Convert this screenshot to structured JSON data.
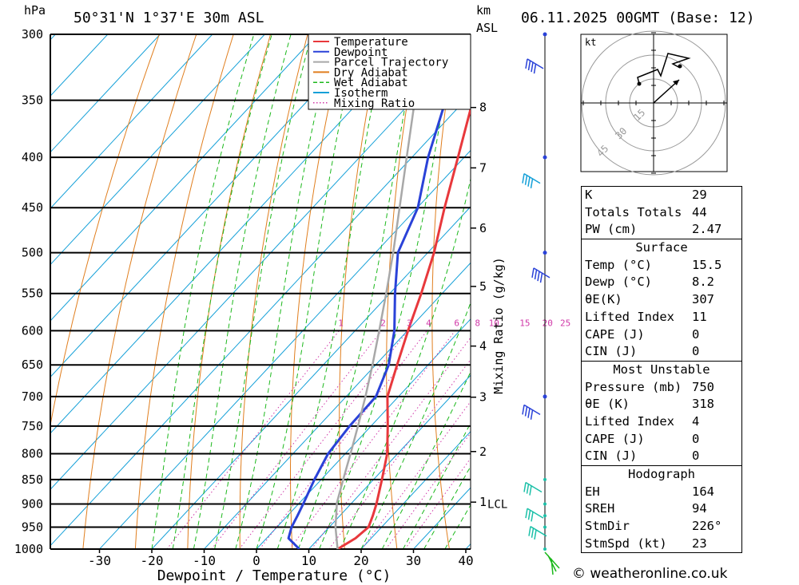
{
  "header": {
    "hpa_label": "hPa",
    "location": "50°31'N 1°37'E 30m ASL",
    "km_label": "km",
    "asl_label": "ASL",
    "datetime": "06.11.2025 00GMT (Base: 12)"
  },
  "legend": [
    {
      "label": "Temperature",
      "color": "#e8383c",
      "style": "solid"
    },
    {
      "label": "Dewpoint",
      "color": "#2a42d8",
      "style": "solid"
    },
    {
      "label": "Parcel Trajectory",
      "color": "#a8a8a8",
      "style": "solid"
    },
    {
      "label": "Dry Adiabat",
      "color": "#e07e1e",
      "style": "solid"
    },
    {
      "label": "Wet Adiabat",
      "color": "#1cb81c",
      "style": "dashed"
    },
    {
      "label": "Isotherm",
      "color": "#14a0d8",
      "style": "solid"
    },
    {
      "label": "Mixing Ratio",
      "color": "#d038a8",
      "style": "dotted"
    }
  ],
  "chart_data": {
    "type": "line",
    "title": "Skew-T log-P diagram",
    "xlabel": "Dewpoint / Temperature (°C)",
    "ylabel": "hPa",
    "right_axis_label": "Mixing Ratio (g/kg)",
    "pressure_levels": [
      "300",
      "350",
      "400",
      "450",
      "500",
      "550",
      "600",
      "650",
      "700",
      "750",
      "800",
      "850",
      "900",
      "950",
      "1000"
    ],
    "temp_ticks": [
      "-30",
      "-20",
      "-10",
      "0",
      "10",
      "20",
      "30",
      "40"
    ],
    "km_ticks": [
      {
        "label": "1",
        "p": 896
      },
      {
        "label": "2",
        "p": 796
      },
      {
        "label": "3",
        "p": 701
      },
      {
        "label": "4",
        "p": 622
      },
      {
        "label": "5",
        "p": 541
      },
      {
        "label": "6",
        "p": 472
      },
      {
        "label": "7",
        "p": 410
      },
      {
        "label": "8",
        "p": 356
      }
    ],
    "lcl_label": "LCL",
    "mixing_ratio_labels": [
      "1",
      "2",
      "3",
      "4",
      "6",
      "8",
      "10",
      "15",
      "20",
      "25"
    ],
    "series": [
      {
        "name": "Temperature",
        "color": "#e8383c",
        "p": [
          1000,
          975,
          950,
          925,
          900,
          850,
          800,
          750,
          700,
          650,
          600,
          550,
          500,
          450,
          400,
          350,
          300
        ],
        "t": [
          15.5,
          17.0,
          17.5,
          16.3,
          14.9,
          11.6,
          8.0,
          3.2,
          -2.1,
          -5.9,
          -9.9,
          -14.0,
          -18.8,
          -24.8,
          -31.2,
          -38.5,
          -46.7
        ]
      },
      {
        "name": "Dewpoint",
        "color": "#2a42d8",
        "p": [
          1000,
          975,
          950,
          925,
          900,
          850,
          800,
          750,
          700,
          650,
          600,
          550,
          500,
          450,
          400,
          350,
          300
        ],
        "t": [
          8.2,
          4.2,
          2.8,
          1.9,
          0.9,
          -1.3,
          -3.3,
          -4.1,
          -4.3,
          -7.5,
          -12.5,
          -19.0,
          -25.7,
          -29.9,
          -36.9,
          -43.7,
          -51.0
        ]
      },
      {
        "name": "Parcel Trajectory",
        "color": "#a8a8a8",
        "p": [
          1000,
          950,
          897,
          850,
          800,
          750,
          700,
          650,
          600,
          550,
          500,
          450,
          400,
          350,
          300
        ],
        "t": [
          15.5,
          11.2,
          7.1,
          4.2,
          1.0,
          -2.5,
          -6.3,
          -10.6,
          -15.4,
          -20.7,
          -26.6,
          -33.4,
          -41.0,
          -49.6,
          -59.0
        ]
      }
    ]
  },
  "stats": {
    "top": [
      {
        "label": "K",
        "value": "29"
      },
      {
        "label": "Totals Totals",
        "value": "44"
      },
      {
        "label": "PW (cm)",
        "value": "2.47"
      }
    ],
    "surface": {
      "title": "Surface",
      "rows": [
        {
          "label": "Temp (°C)",
          "value": "15.5"
        },
        {
          "label": "Dewp (°C)",
          "value": "8.2"
        },
        {
          "label": "θE(K)",
          "value": "307"
        },
        {
          "label": "Lifted Index",
          "value": "11"
        },
        {
          "label": "CAPE (J)",
          "value": "0"
        },
        {
          "label": "CIN (J)",
          "value": "0"
        }
      ]
    },
    "most_unstable": {
      "title": "Most Unstable",
      "rows": [
        {
          "label": "Pressure (mb)",
          "value": "750"
        },
        {
          "label": "θE (K)",
          "value": "318"
        },
        {
          "label": "Lifted Index",
          "value": "4"
        },
        {
          "label": "CAPE (J)",
          "value": "0"
        },
        {
          "label": "CIN (J)",
          "value": "0"
        }
      ]
    },
    "hodograph": {
      "title": "Hodograph",
      "rows": [
        {
          "label": "EH",
          "value": "164"
        },
        {
          "label": "SREH",
          "value": "94"
        },
        {
          "label": "StmDir",
          "value": "226°"
        },
        {
          "label": "StmSpd (kt)",
          "value": "23"
        }
      ]
    }
  },
  "hodograph_plot": {
    "unit_label": "kt",
    "ring_labels": [
      "15",
      "30",
      "45"
    ]
  },
  "credit": "© weatheronline.co.uk"
}
